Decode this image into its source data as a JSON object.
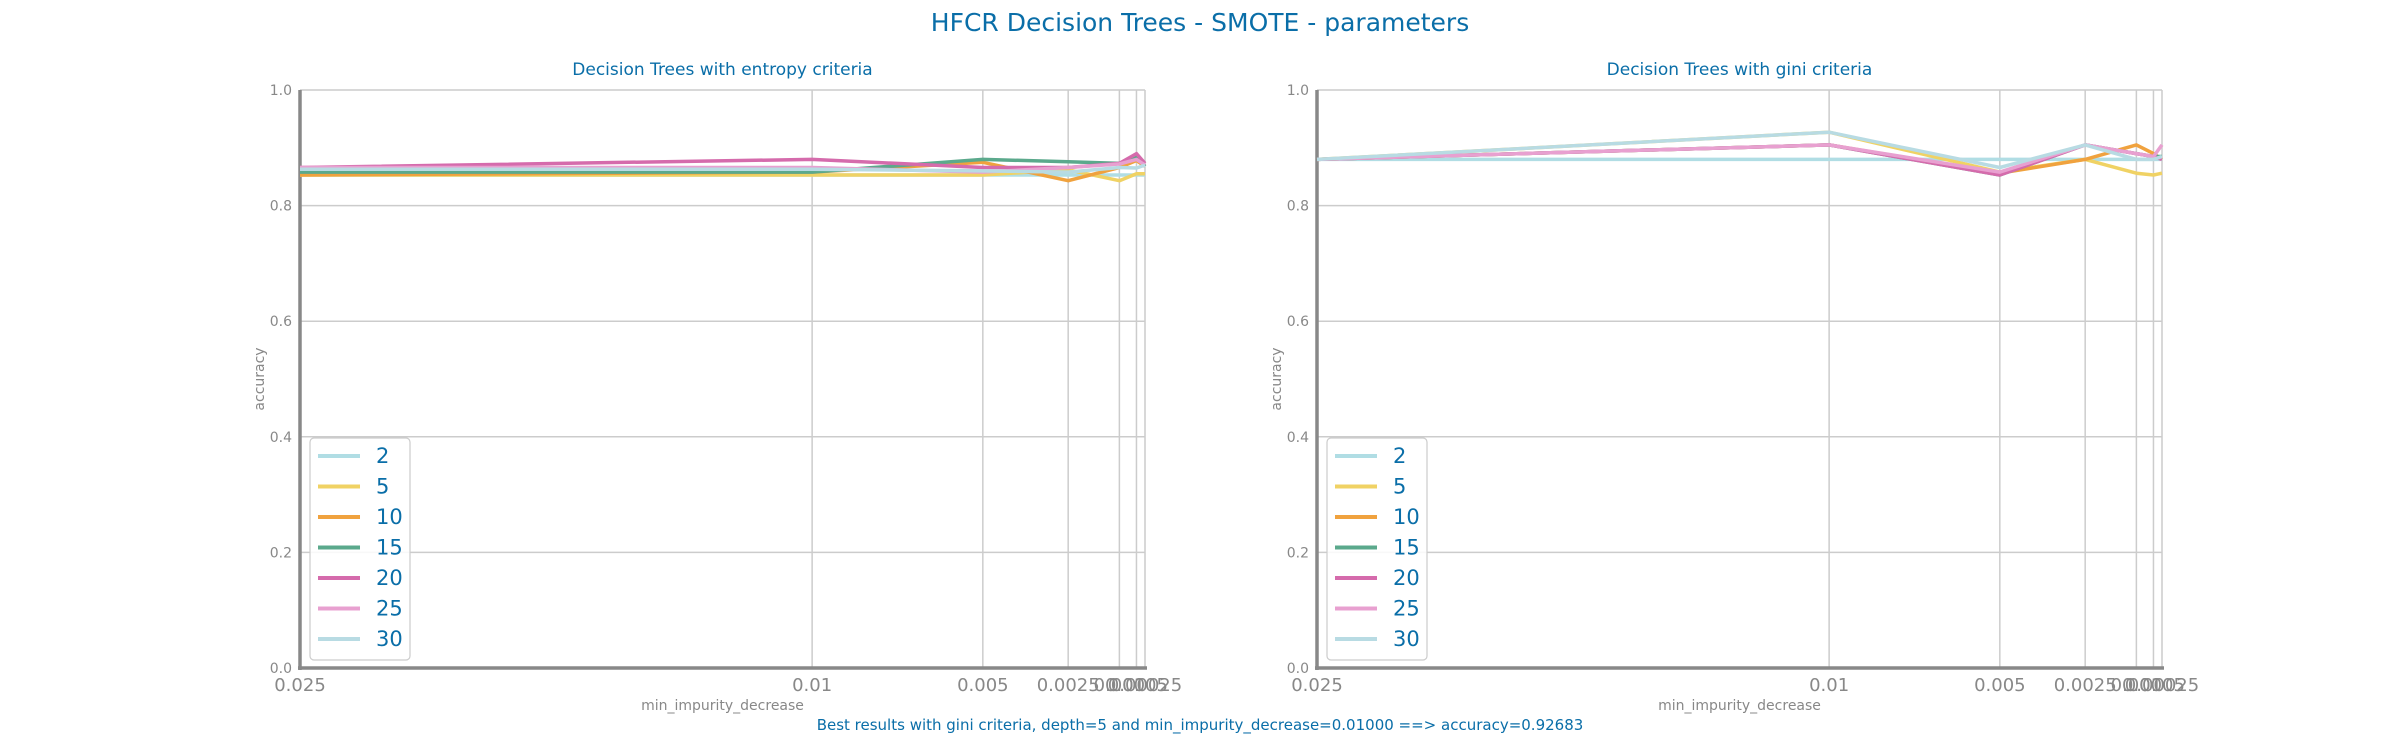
{
  "figure": {
    "title": "HFCR Decision Trees - SMOTE - parameters",
    "footer": "Best results with gini criteria, depth=5 and min_impurity_decrease=0.01000 ==> accuracy=0.92683"
  },
  "colors": {
    "title": "#0a6ea8",
    "axis": "#888888",
    "grid": "#cccccc",
    "tick_text": "#888888",
    "legend_text": "#0a6ea8"
  },
  "chart_data": [
    {
      "type": "line",
      "title": "Decision Trees with entropy criteria",
      "xlabel": "min_impurity_decrease",
      "ylabel": "accuracy",
      "x": [
        0.025,
        0.01,
        0.005,
        0.0025,
        0.001,
        0.0005,
        0.00025
      ],
      "x_tick_labels": [
        "0.025",
        "0.01",
        "0.005",
        "0.0025",
        "0.001",
        "0.0005",
        "0.00025"
      ],
      "x_axis_inverted": true,
      "ylim": [
        0.0,
        1.0
      ],
      "y_ticks": [
        "0.0",
        "0.2",
        "0.4",
        "0.6",
        "0.8",
        "1.0"
      ],
      "grid": true,
      "legend_position": "lower-left",
      "series": [
        {
          "name": "2",
          "color": "#b0dde4",
          "values": [
            0.853,
            0.853,
            0.853,
            0.853,
            0.853,
            0.853,
            0.853
          ]
        },
        {
          "name": "5",
          "color": "#f0d264",
          "values": [
            0.853,
            0.853,
            0.853,
            0.862,
            0.843,
            0.855,
            0.855
          ]
        },
        {
          "name": "10",
          "color": "#f0a23e",
          "values": [
            0.853,
            0.858,
            0.875,
            0.843,
            0.866,
            0.878,
            0.868
          ]
        },
        {
          "name": "15",
          "color": "#5ba98c",
          "values": [
            0.858,
            0.858,
            0.88,
            0.876,
            0.873,
            0.885,
            0.868
          ]
        },
        {
          "name": "20",
          "color": "#d56bac",
          "values": [
            0.866,
            0.88,
            0.866,
            0.866,
            0.873,
            0.89,
            0.873
          ]
        },
        {
          "name": "25",
          "color": "#e8a0d0",
          "values": [
            0.866,
            0.866,
            0.858,
            0.866,
            0.872,
            0.88,
            0.87
          ]
        },
        {
          "name": "30",
          "color": "#b8dbe3",
          "values": [
            0.863,
            0.863,
            0.86,
            0.858,
            0.866,
            0.865,
            0.87
          ]
        }
      ]
    },
    {
      "type": "line",
      "title": "Decision Trees with gini criteria",
      "xlabel": "min_impurity_decrease",
      "ylabel": "accuracy",
      "x": [
        0.025,
        0.01,
        0.005,
        0.0025,
        0.001,
        0.0005,
        0.00025
      ],
      "x_tick_labels": [
        "0.025",
        "0.01",
        "0.005",
        "0.0025",
        "0.001",
        "0.0005",
        "0.00025"
      ],
      "x_axis_inverted": true,
      "ylim": [
        0.0,
        1.0
      ],
      "y_ticks": [
        "0.0",
        "0.2",
        "0.4",
        "0.6",
        "0.8",
        "1.0"
      ],
      "grid": true,
      "legend_position": "lower-left",
      "series": [
        {
          "name": "2",
          "color": "#b0dde4",
          "values": [
            0.88,
            0.88,
            0.88,
            0.88,
            0.88,
            0.88,
            0.88
          ]
        },
        {
          "name": "5",
          "color": "#f0d264",
          "values": [
            0.88,
            0.927,
            0.858,
            0.88,
            0.856,
            0.853,
            0.856
          ]
        },
        {
          "name": "10",
          "color": "#f0a23e",
          "values": [
            0.88,
            0.905,
            0.856,
            0.88,
            0.905,
            0.89,
            0.88
          ]
        },
        {
          "name": "15",
          "color": "#5ba98c",
          "values": [
            0.88,
            0.905,
            0.853,
            0.905,
            0.89,
            0.885,
            0.885
          ]
        },
        {
          "name": "20",
          "color": "#d56bac",
          "values": [
            0.88,
            0.905,
            0.853,
            0.905,
            0.89,
            0.885,
            0.88
          ]
        },
        {
          "name": "25",
          "color": "#e8a0d0",
          "values": [
            0.88,
            0.905,
            0.858,
            0.905,
            0.89,
            0.885,
            0.905
          ]
        },
        {
          "name": "30",
          "color": "#b8dbe3",
          "values": [
            0.88,
            0.927,
            0.866,
            0.905,
            0.88,
            0.88,
            0.885
          ]
        }
      ]
    }
  ]
}
